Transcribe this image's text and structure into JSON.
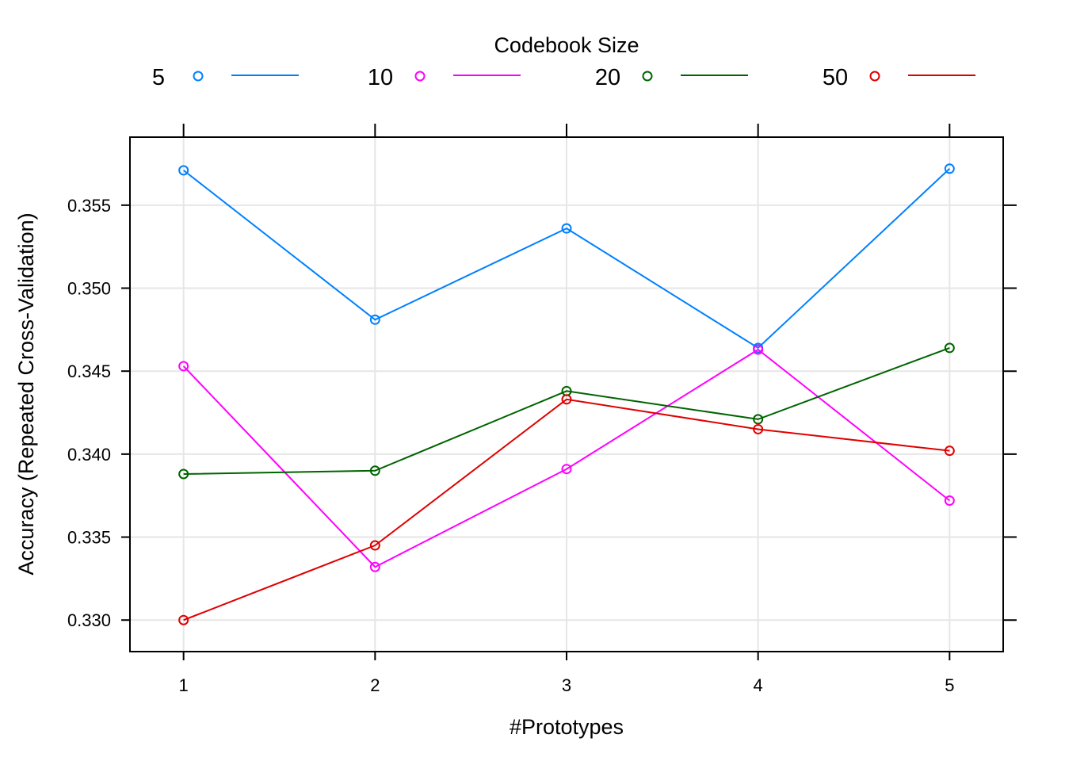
{
  "chart_data": {
    "type": "line",
    "title": "",
    "xlabel": "#Prototypes",
    "ylabel": "Accuracy (Repeated Cross-Validation)",
    "x": [
      1,
      2,
      3,
      4,
      5
    ],
    "xticks": [
      "1",
      "2",
      "3",
      "4",
      "5"
    ],
    "yticks": [
      "0.330",
      "0.335",
      "0.340",
      "0.345",
      "0.350",
      "0.355"
    ],
    "xlim": [
      0.72,
      5.28
    ],
    "ylim": [
      0.3281,
      0.3591
    ],
    "grid": true,
    "legend": {
      "title": "Codebook Size",
      "position": "top"
    },
    "series": [
      {
        "name": "5",
        "color": "#0080ff",
        "values": [
          0.3571,
          0.3481,
          0.3536,
          0.3464,
          0.3572
        ]
      },
      {
        "name": "10",
        "color": "#ff00ff",
        "values": [
          0.3453,
          0.3332,
          0.3391,
          0.3463,
          0.3372
        ]
      },
      {
        "name": "20",
        "color": "#006400",
        "values": [
          0.3388,
          0.339,
          0.3438,
          0.3421,
          0.3464
        ]
      },
      {
        "name": "50",
        "color": "#e00000",
        "values": [
          0.33,
          0.3345,
          0.3433,
          0.3415,
          0.3402
        ]
      }
    ]
  }
}
